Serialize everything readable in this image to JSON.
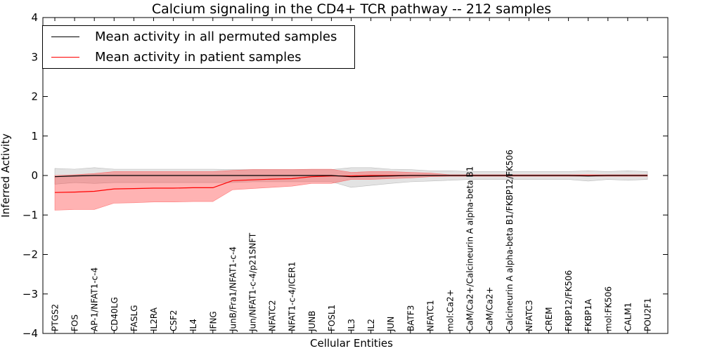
{
  "chart_data": {
    "type": "line",
    "title": "Calcium signaling in the CD4+ TCR pathway -- 212 samples",
    "xlabel": "Cellular Entities",
    "ylabel": "Inferred Activity",
    "ylim": [
      -4,
      4
    ],
    "yticks": [
      -4,
      -3,
      -2,
      -1,
      0,
      1,
      2,
      3,
      4
    ],
    "ytick_labels": [
      "−4",
      "−3",
      "−2",
      "−1",
      "0",
      "1",
      "2",
      "3",
      "4"
    ],
    "grid": false,
    "legend_position": "top-left",
    "categories": [
      "PTGS2",
      "FOS",
      "AP-1/NFAT1-c-4",
      "CD40LG",
      "FASLG",
      "IL2RA",
      "CSF2",
      "IL4",
      "IFNG",
      "JunB/Fra1/NFAT1-c-4",
      "Jun/NFAT1-c-4/p21SNFT",
      "NFATC2",
      "NFAT1-c-4/ICER1",
      "JUNB",
      "FOSL1",
      "IL3",
      "IL2",
      "JUN",
      "BATF3",
      "NFATC1",
      "mol:Ca2+",
      "CaM/Ca2+/Calcineurin A alpha-beta B1",
      "CaM/Ca2+",
      "Calcineurin A alpha-beta B1/FKBP12/FK506",
      "NFATC3",
      "CREM",
      "FKBP12/FK506",
      "FKBP1A",
      "mol:FK506",
      "CALM1",
      "POU2F1"
    ],
    "series": [
      {
        "name": "Mean activity in all permuted samples",
        "color": "#000000",
        "band_color": "#c8c8c8",
        "values": [
          -0.03,
          -0.01,
          0.0,
          0.0,
          0.0,
          0.0,
          0.0,
          0.0,
          0.0,
          0.0,
          0.0,
          0.0,
          0.0,
          0.0,
          0.0,
          -0.03,
          -0.02,
          -0.01,
          0.0,
          0.0,
          0.0,
          0.0,
          0.0,
          0.0,
          0.0,
          0.0,
          0.0,
          -0.01,
          0.0,
          0.0,
          0.0
        ],
        "lower": [
          -0.22,
          -0.18,
          -0.2,
          -0.18,
          -0.18,
          -0.18,
          -0.18,
          -0.18,
          -0.18,
          -0.18,
          -0.16,
          -0.16,
          -0.16,
          -0.16,
          -0.16,
          -0.3,
          -0.25,
          -0.2,
          -0.16,
          -0.14,
          -0.12,
          -0.1,
          -0.1,
          -0.1,
          -0.1,
          -0.1,
          -0.1,
          -0.14,
          -0.1,
          -0.12,
          -0.1
        ],
        "upper": [
          0.18,
          0.16,
          0.2,
          0.16,
          0.16,
          0.16,
          0.16,
          0.16,
          0.16,
          0.15,
          0.15,
          0.15,
          0.15,
          0.15,
          0.15,
          0.2,
          0.2,
          0.16,
          0.15,
          0.12,
          0.12,
          0.1,
          0.1,
          0.1,
          0.1,
          0.1,
          0.1,
          0.12,
          0.1,
          0.12,
          0.1
        ]
      },
      {
        "name": "Mean activity in patient samples",
        "color": "#ff0000",
        "band_color": "#ff4040",
        "values": [
          -0.43,
          -0.42,
          -0.4,
          -0.34,
          -0.33,
          -0.32,
          -0.32,
          -0.31,
          -0.31,
          -0.13,
          -0.11,
          -0.09,
          -0.08,
          -0.03,
          -0.01,
          -0.01,
          0.0,
          0.0,
          0.0,
          0.0,
          0.0,
          0.0,
          0.0,
          0.0,
          0.0,
          0.0,
          0.0,
          0.0,
          0.0,
          0.0,
          0.0
        ],
        "lower": [
          -0.88,
          -0.86,
          -0.86,
          -0.7,
          -0.69,
          -0.67,
          -0.67,
          -0.66,
          -0.66,
          -0.36,
          -0.33,
          -0.3,
          -0.27,
          -0.2,
          -0.2,
          -0.1,
          -0.1,
          -0.08,
          -0.06,
          -0.03,
          -0.02,
          -0.02,
          -0.02,
          -0.02,
          -0.02,
          -0.02,
          -0.02,
          -0.02,
          -0.02,
          -0.02,
          -0.02
        ],
        "upper": [
          0.0,
          0.02,
          0.05,
          0.1,
          0.1,
          0.1,
          0.1,
          0.1,
          0.1,
          0.13,
          0.15,
          0.15,
          0.15,
          0.16,
          0.16,
          0.08,
          0.1,
          0.1,
          0.08,
          0.06,
          0.02,
          0.02,
          0.02,
          0.02,
          0.02,
          0.02,
          0.02,
          0.02,
          0.02,
          0.02,
          0.02
        ]
      }
    ]
  }
}
